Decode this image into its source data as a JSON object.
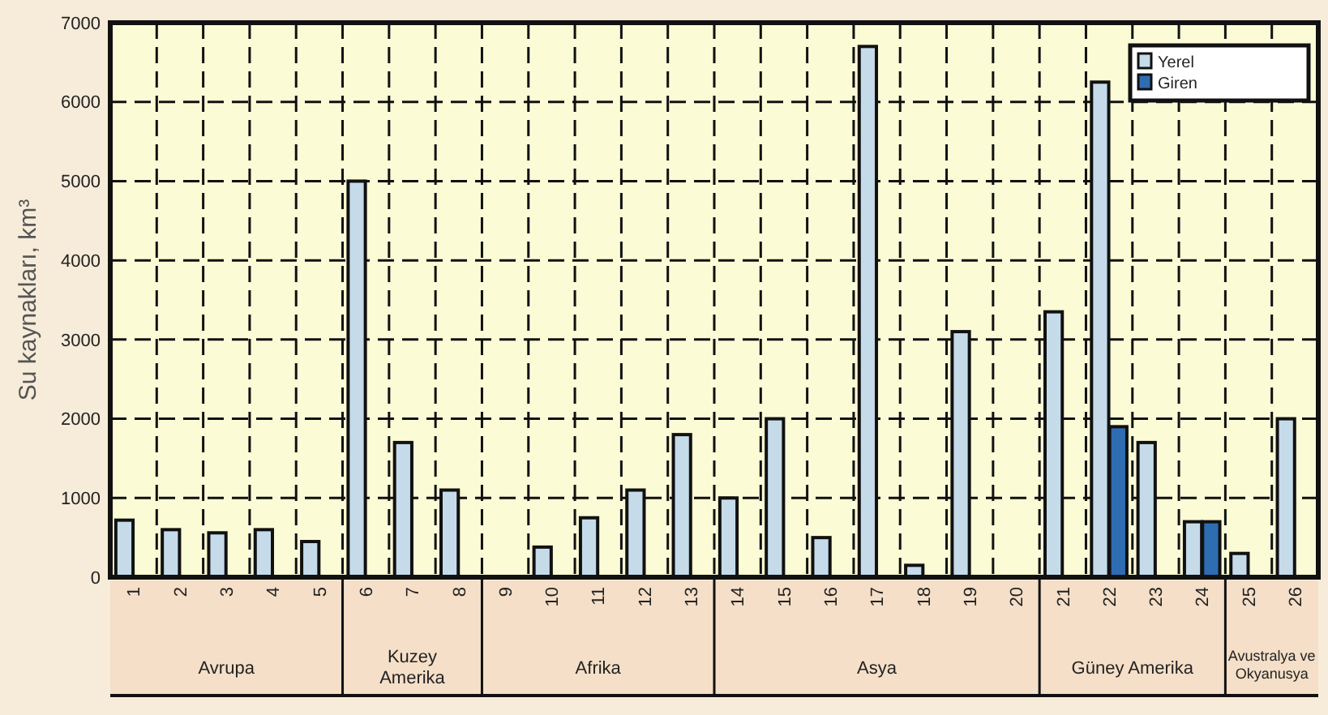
{
  "chart_data": {
    "type": "bar",
    "ylabel": "Su kaynakları, km³",
    "categories": [
      "1",
      "2",
      "3",
      "4",
      "5",
      "6",
      "7",
      "8",
      "9",
      "10",
      "11",
      "12",
      "13",
      "14",
      "15",
      "16",
      "17",
      "18",
      "19",
      "20",
      "21",
      "22",
      "23",
      "24",
      "25",
      "26"
    ],
    "series": [
      {
        "name": "Yerel",
        "color": "#c6dbe9",
        "values": [
          720,
          600,
          560,
          600,
          450,
          5000,
          1700,
          1100,
          null,
          380,
          750,
          1100,
          1800,
          1000,
          2000,
          500,
          6700,
          150,
          3100,
          null,
          3350,
          6250,
          1700,
          700,
          300,
          2000
        ]
      },
      {
        "name": "Giren",
        "color": "#2f6db3",
        "values": [
          0,
          0,
          0,
          0,
          0,
          0,
          0,
          0,
          0,
          0,
          0,
          0,
          0,
          0,
          0,
          0,
          0,
          0,
          0,
          0,
          0,
          1900,
          0,
          700,
          0,
          0
        ]
      }
    ],
    "ylim": [
      0,
      7000
    ],
    "yticks": [
      0,
      1000,
      2000,
      3000,
      4000,
      5000,
      6000,
      7000
    ],
    "grid": true,
    "legend": "top right",
    "annotations": [
      "Avrupa",
      "Kuzey Amerika",
      "Afrika",
      "Asya",
      "Güney Amerika",
      "Avustralya ve Okyanusya"
    ]
  }
}
